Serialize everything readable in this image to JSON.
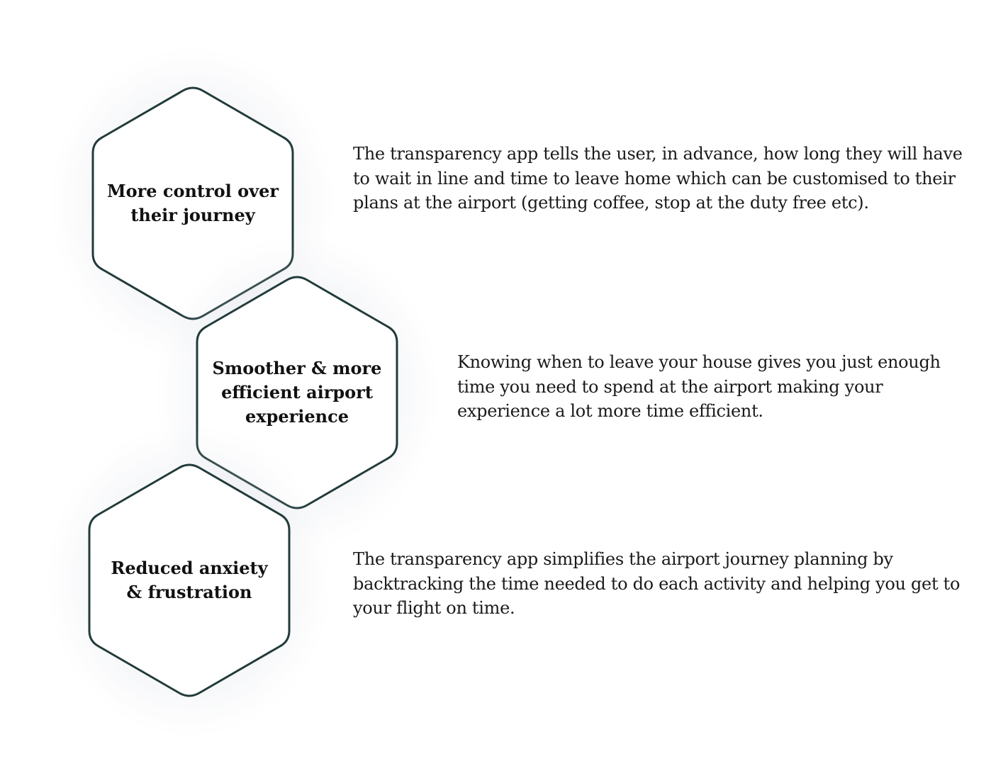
{
  "stroke_color": "#223b3b",
  "items": [
    {
      "title": "More control over their journey",
      "description": "The transparency app tells the user, in advance, how long they will have to wait in line and time to leave home which can be customised to their plans at the airport (getting coffee, stop at the duty free etc)."
    },
    {
      "title": "Smoother & more efficient airport experience",
      "description": "Knowing when to leave your house gives you just enough time you need to spend at the airport making your experience a lot more time efficient."
    },
    {
      "title": "Reduced anxiety & frustration",
      "description": "The transparency app simplifies the airport journey planning by backtracking the time needed to do each activity and helping you get to your flight on time."
    }
  ]
}
